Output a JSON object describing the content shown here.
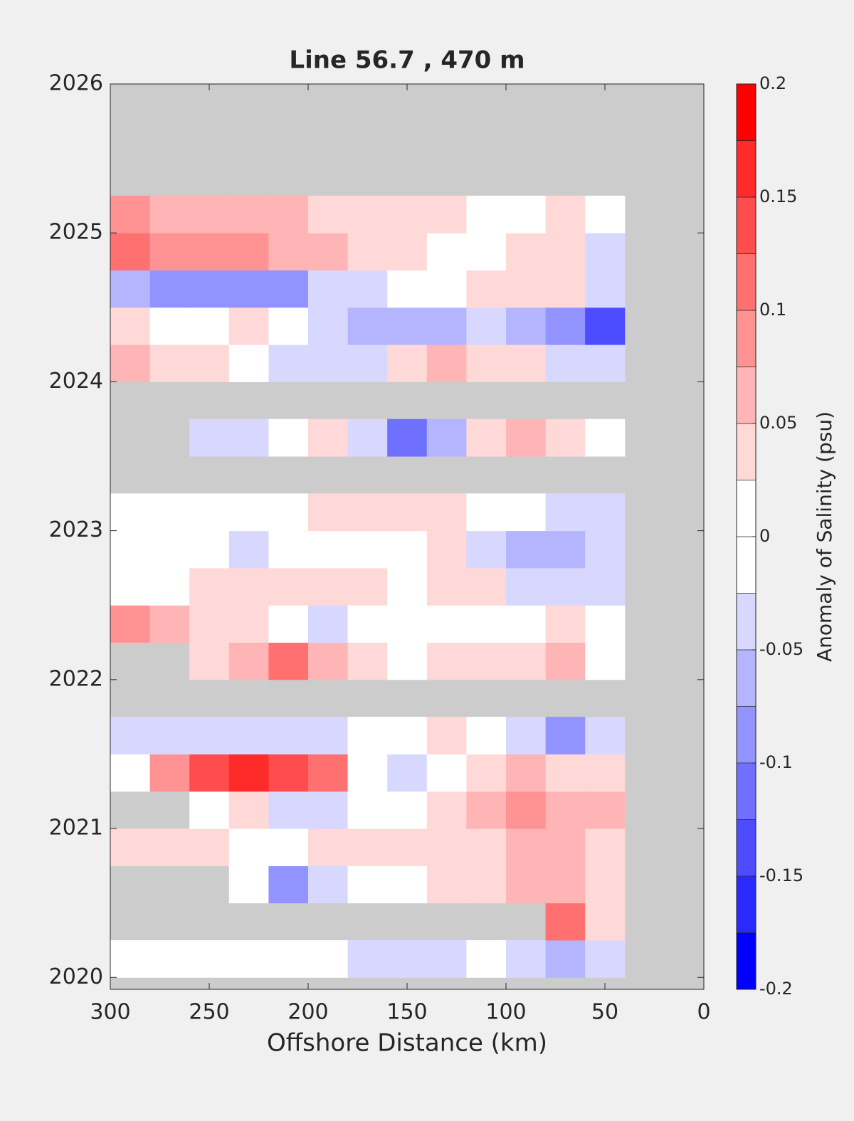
{
  "chart_data": {
    "type": "contour",
    "title": "Line 56.7 , 470 m",
    "xlabel": "Offshore Distance (km)",
    "colorbar_label": "Anomaly of Salinity (psu)",
    "xlim": [
      300,
      0
    ],
    "xticks": [
      300,
      250,
      200,
      150,
      100,
      50,
      0
    ],
    "ylim": [
      2019.92,
      2026
    ],
    "yticks": [
      2020,
      2021,
      2022,
      2023,
      2024,
      2025,
      2026
    ],
    "clim": [
      -0.2,
      0.2
    ],
    "cticks": [
      -0.2,
      -0.15,
      -0.1,
      -0.05,
      0,
      0.05,
      0.1,
      0.15,
      0.2
    ],
    "colormap": [
      "#0000ff",
      "#2a2aff",
      "#4d4dff",
      "#7070ff",
      "#9393ff",
      "#b5b5ff",
      "#d8d8ff",
      "#ffffff",
      "#ffffff",
      "#ffd8d8",
      "#ffb5b5",
      "#ff9393",
      "#ff7070",
      "#ff4d4d",
      "#ff2a2a",
      "#ff0000"
    ],
    "missing_color": "#cccccc",
    "x": [
      290,
      270,
      250,
      230,
      210,
      190,
      170,
      150,
      130,
      110,
      90,
      70,
      50
    ],
    "y": [
      2020.125,
      2020.375,
      2020.625,
      2020.875,
      2021.125,
      2021.375,
      2021.625,
      2021.875,
      2022.125,
      2022.375,
      2022.625,
      2022.875,
      2023.125,
      2023.375,
      2023.625,
      2023.875,
      2024.125,
      2024.375,
      2024.625,
      2024.875,
      2025.125
    ],
    "z": [
      [
        0,
        0,
        0,
        0,
        0,
        0,
        -0.03,
        -0.04,
        -0.03,
        0,
        -0.04,
        -0.06,
        -0.04
      ],
      [
        null,
        null,
        null,
        null,
        null,
        null,
        null,
        null,
        null,
        null,
        null,
        0.1,
        0.03
      ],
      [
        null,
        null,
        null,
        0,
        -0.1,
        -0.04,
        0,
        0,
        0.03,
        0.04,
        0.06,
        0.07,
        0.03
      ],
      [
        0.03,
        0.03,
        0.03,
        0,
        0,
        0.04,
        0.04,
        0.04,
        0.03,
        0.04,
        0.06,
        0.05,
        0.04
      ],
      [
        null,
        null,
        0,
        0.03,
        -0.04,
        -0.03,
        0,
        0,
        0.03,
        0.07,
        0.09,
        0.06,
        0.05
      ],
      [
        0,
        0.09,
        0.15,
        0.16,
        0.14,
        0.1,
        0,
        -0.03,
        0,
        0.03,
        0.05,
        0.04,
        0.03
      ],
      [
        -0.03,
        -0.05,
        -0.05,
        -0.05,
        -0.04,
        -0.03,
        0,
        0,
        0.03,
        0,
        -0.05,
        -0.1,
        -0.04
      ],
      [
        null,
        null,
        null,
        null,
        null,
        null,
        null,
        null,
        null,
        null,
        null,
        null,
        null
      ],
      [
        null,
        null,
        0.04,
        0.06,
        0.1,
        0.06,
        0.03,
        0,
        0.03,
        0.04,
        0.03,
        0.05,
        0
      ],
      [
        0.08,
        0.06,
        0.04,
        0.03,
        0,
        -0.03,
        0,
        0,
        0,
        0,
        0,
        0.03,
        0
      ],
      [
        0,
        0,
        0.03,
        0.03,
        0.03,
        0.03,
        0.03,
        0,
        0.03,
        0.03,
        -0.03,
        -0.04,
        -0.03
      ],
      [
        0,
        0,
        0,
        -0.03,
        0,
        0,
        0,
        0,
        0.03,
        -0.04,
        -0.07,
        -0.06,
        -0.04
      ],
      [
        0,
        0,
        0,
        0,
        0,
        0.03,
        0.03,
        0.03,
        0.04,
        0,
        0,
        -0.04,
        -0.04
      ],
      [
        null,
        null,
        null,
        null,
        null,
        null,
        null,
        null,
        null,
        null,
        null,
        null,
        null
      ],
      [
        null,
        null,
        -0.03,
        -0.03,
        0,
        0.03,
        -0.05,
        -0.12,
        -0.06,
        0.04,
        0.06,
        0.04,
        0
      ],
      [
        null,
        null,
        null,
        null,
        null,
        null,
        null,
        null,
        null,
        null,
        null,
        null,
        null
      ],
      [
        0.05,
        0.04,
        0.03,
        0,
        -0.03,
        -0.05,
        -0.03,
        0.04,
        0.05,
        0.03,
        0.03,
        -0.03,
        -0.05
      ],
      [
        0.03,
        0,
        0,
        0.03,
        0,
        -0.04,
        -0.06,
        -0.07,
        -0.06,
        -0.05,
        -0.06,
        -0.1,
        -0.14
      ],
      [
        -0.06,
        -0.1,
        -0.09,
        -0.1,
        -0.08,
        -0.05,
        -0.03,
        0,
        0,
        0.03,
        0.03,
        0.03,
        -0.03
      ],
      [
        0.12,
        0.09,
        0.08,
        0.08,
        0.07,
        0.05,
        0.04,
        0.03,
        0,
        0,
        0.03,
        0.04,
        -0.03
      ],
      [
        0.08,
        0.06,
        0.06,
        0.07,
        0.06,
        0.04,
        0.03,
        0.03,
        0.03,
        0,
        0,
        0.03,
        0
      ]
    ]
  }
}
